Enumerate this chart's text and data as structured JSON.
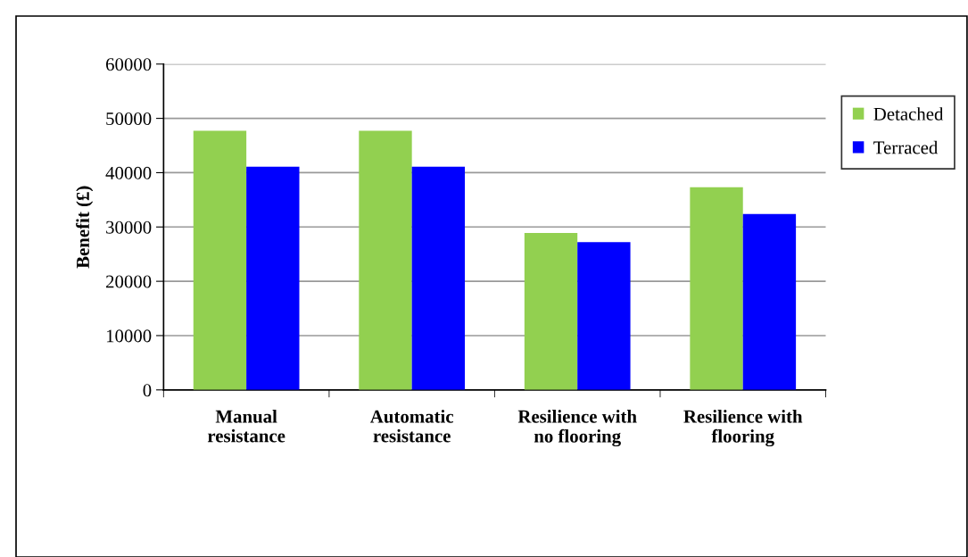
{
  "chart_data": {
    "type": "bar",
    "ylabel": "Benefit (£)",
    "categories": [
      "Manual\nresistance",
      "Automatic\nresistance",
      "Resilience with\nno flooring",
      "Resilience with\nflooring"
    ],
    "series": [
      {
        "name": "Detached",
        "color": "#92d050",
        "values": [
          47700,
          47700,
          28900,
          37300
        ]
      },
      {
        "name": "Terraced",
        "color": "#0000ff",
        "values": [
          41100,
          41100,
          27200,
          32400
        ]
      }
    ],
    "ylim": [
      0,
      60000
    ],
    "yticks": [
      0,
      10000,
      20000,
      30000,
      40000,
      50000,
      60000
    ],
    "grid": "y",
    "legend": "right"
  }
}
